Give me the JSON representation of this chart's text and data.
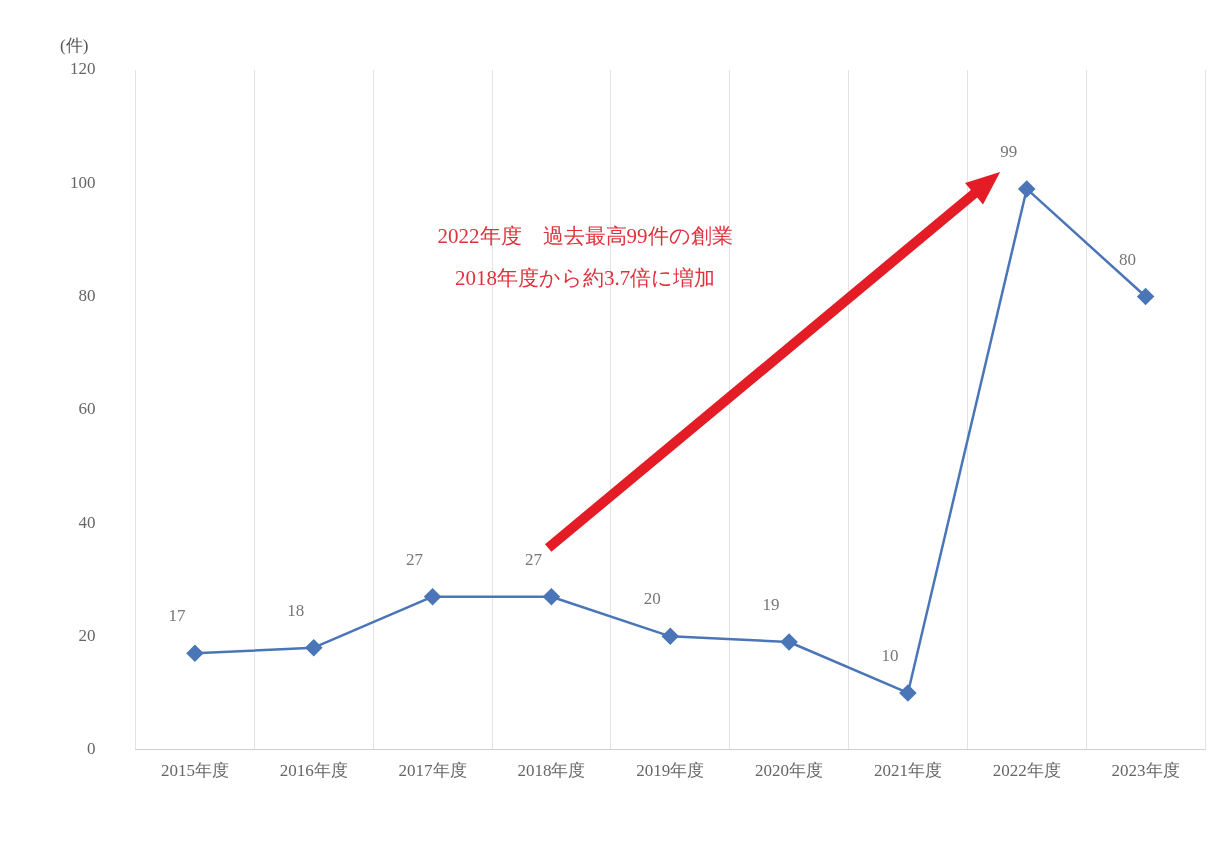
{
  "chart_data": {
    "type": "line",
    "ylabel": "(件)",
    "categories": [
      "2015年度",
      "2016年度",
      "2017年度",
      "2018年度",
      "2019年度",
      "2020年度",
      "2021年度",
      "2022年度",
      "2023年度"
    ],
    "series": [
      {
        "color": "#4a76b8",
        "values": [
          17,
          18,
          27,
          27,
          20,
          19,
          10,
          99,
          80
        ]
      }
    ],
    "ylim": [
      0,
      120
    ],
    "yticks": [
      0,
      20,
      40,
      60,
      80,
      100,
      120
    ],
    "grid": "x",
    "data_labels": true,
    "marker": "diamond",
    "line_style": "solid",
    "annotations": [
      "2022年度　過去最高99件の創業",
      "2018年度から約3.7倍に増加"
    ]
  }
}
